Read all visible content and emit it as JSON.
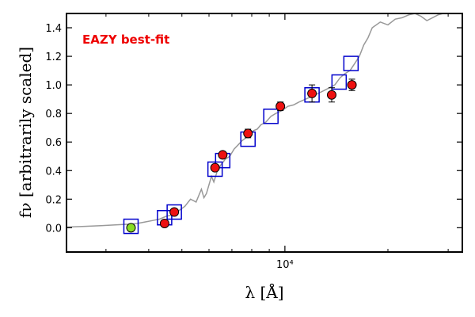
{
  "chart_data": {
    "type": "scatter",
    "title": "",
    "annotation": "EAZY best-fit",
    "xlabel": "λ [Å]",
    "ylabel": "fν [arbitrarily scaled]",
    "xscale": "log",
    "xlim": [
      2300,
      33000
    ],
    "ylim": [
      -0.17,
      1.5
    ],
    "xticks_major": [
      10000
    ],
    "xticks_major_labels": [
      "10⁴"
    ],
    "xticks_minor": [
      3000,
      4000,
      5000,
      6000,
      7000,
      8000,
      9000,
      20000,
      30000
    ],
    "yticks": [
      0.0,
      0.2,
      0.4,
      0.6,
      0.8,
      1.0,
      1.2,
      1.4
    ],
    "ytick_labels": [
      "0.0",
      "0.2",
      "0.4",
      "0.6",
      "0.8",
      "1.0",
      "1.2",
      "1.4"
    ],
    "grid": false,
    "colors": {
      "template": "#999999",
      "model_box": "#0000cc",
      "observed": "#ee1111",
      "observed_dropout": "#88dd22",
      "annotation": "#ee0000"
    },
    "series": [
      {
        "kind": "template-spectrum",
        "x": [
          2300,
          2600,
          2900,
          3200,
          3500,
          3700,
          3900,
          4100,
          4300,
          4500,
          4700,
          4900,
          5100,
          5300,
          5500,
          5700,
          5800,
          5900,
          6100,
          6200,
          6350,
          6500,
          6700,
          6900,
          7100,
          7300,
          7500,
          7700,
          7900,
          8100,
          8300,
          8500,
          8800,
          9100,
          9400,
          9800,
          10200,
          10600,
          11000,
          11500,
          12000,
          12500,
          13000,
          13500,
          14000,
          14500,
          15000,
          15500,
          16000,
          16500,
          17000,
          17500,
          18000,
          19000,
          20000,
          21000,
          22000,
          23000,
          24000,
          25000,
          26000,
          27000,
          28000,
          29000
        ],
        "y": [
          0.005,
          0.01,
          0.015,
          0.02,
          0.025,
          0.03,
          0.04,
          0.05,
          0.06,
          0.08,
          0.09,
          0.12,
          0.15,
          0.2,
          0.18,
          0.27,
          0.21,
          0.24,
          0.36,
          0.32,
          0.4,
          0.44,
          0.48,
          0.5,
          0.55,
          0.58,
          0.61,
          0.63,
          0.66,
          0.68,
          0.69,
          0.72,
          0.74,
          0.78,
          0.8,
          0.82,
          0.85,
          0.86,
          0.88,
          0.9,
          0.92,
          0.94,
          0.96,
          0.98,
          1.0,
          1.05,
          1.08,
          1.1,
          1.15,
          1.2,
          1.28,
          1.33,
          1.4,
          1.44,
          1.42,
          1.46,
          1.47,
          1.49,
          1.5,
          1.48,
          1.45,
          1.47,
          1.49,
          1.5
        ]
      },
      {
        "kind": "model-photometry",
        "x": [
          3550,
          4450,
          4750,
          6250,
          6580,
          7800,
          9100,
          12000,
          14400,
          15600
        ],
        "y": [
          0.01,
          0.07,
          0.11,
          0.41,
          0.47,
          0.62,
          0.78,
          0.93,
          1.02,
          1.15
        ]
      },
      {
        "kind": "observed-photometry",
        "x": [
          3550,
          4450,
          4750,
          6250,
          6580,
          7800,
          9700,
          12000,
          13700,
          15700
        ],
        "y": [
          0.0,
          0.03,
          0.11,
          0.42,
          0.51,
          0.66,
          0.85,
          0.94,
          0.93,
          1.0
        ],
        "yerr": [
          0.01,
          0.01,
          0.01,
          0.02,
          0.02,
          0.03,
          0.03,
          0.06,
          0.05,
          0.04
        ],
        "dropout_index": 0
      }
    ]
  }
}
